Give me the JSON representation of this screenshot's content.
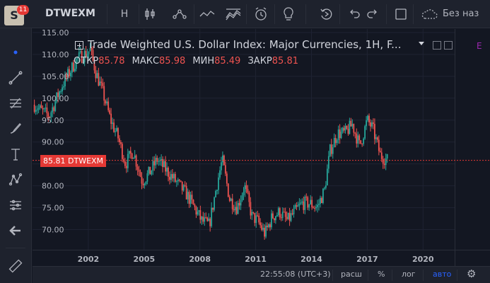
{
  "app": {
    "logo_letter": "S",
    "notification_count": "11",
    "symbol": "DTWEXM",
    "interval": "H",
    "save_label": "Без наз"
  },
  "toolbar_icons": [
    "candles-icon",
    "indicators-icon",
    "compare-line-icon",
    "templates-icon",
    "alert-icon",
    "idea-bulb-icon",
    "replay-icon",
    "undo-icon",
    "redo-icon",
    "fullscreen-icon",
    "cloud-save-icon"
  ],
  "left_tools": [
    "crosshair-dot-icon",
    "trend-line-icon",
    "fib-tool-icon",
    "brush-icon",
    "text-tool-icon",
    "pattern-icon",
    "prediction-icon",
    "back-arrow-icon",
    "ruler-icon"
  ],
  "legend": {
    "title": "Trade Weighted U.S. Dollar Index: Major Currencies, 1H, F...",
    "open_label": "ОТКР",
    "open_value": "85.78",
    "high_label": "МАКС",
    "high_value": "85.98",
    "low_label": "МИН",
    "low_value": "85.49",
    "close_label": "ЗАКР",
    "close_value": "85.81",
    "badge": "E"
  },
  "price_tag": {
    "value": "85.81",
    "symbol": "DTWEXM"
  },
  "bottom": {
    "time": "22:55:08 (UTC+3)",
    "session": "расш",
    "percent": "%",
    "log": "лог",
    "auto": "авто"
  },
  "colors": {
    "up": "#26a69a",
    "down": "#ef5350",
    "price_line": "#e53935",
    "accent": "#2962ff"
  },
  "chart_data": {
    "type": "candlestick",
    "y_ticks": [
      "115.00",
      "110.00",
      "105.00",
      "100.00",
      "95.00",
      "90.00",
      "85.00",
      "80.00",
      "75.00",
      "70.00"
    ],
    "y_tick_values": [
      115,
      110,
      105,
      100,
      95,
      90,
      85,
      80,
      75,
      70
    ],
    "x_ticks": [
      "2002",
      "2005",
      "2008",
      "2011",
      "2014",
      "2017",
      "2020"
    ],
    "x_tick_values": [
      2002,
      2005,
      2008,
      2011,
      2014,
      2017,
      2020
    ],
    "ylim": [
      65.4,
      115.8
    ],
    "xlim": [
      1999.0,
      2021.7
    ],
    "last_price": 85.81,
    "series": [
      {
        "x": 1999.1,
        "y": 98.5
      },
      {
        "x": 1999.5,
        "y": 97.0
      },
      {
        "x": 1999.9,
        "y": 96.0
      },
      {
        "x": 2000.2,
        "y": 99.0
      },
      {
        "x": 2000.6,
        "y": 103.0
      },
      {
        "x": 2001.0,
        "y": 106.0
      },
      {
        "x": 2001.4,
        "y": 109.0
      },
      {
        "x": 2001.8,
        "y": 110.0
      },
      {
        "x": 2002.1,
        "y": 111.0
      },
      {
        "x": 2002.4,
        "y": 106.0
      },
      {
        "x": 2002.8,
        "y": 101.0
      },
      {
        "x": 2003.2,
        "y": 95.0
      },
      {
        "x": 2003.6,
        "y": 91.0
      },
      {
        "x": 2004.0,
        "y": 85.0
      },
      {
        "x": 2004.4,
        "y": 88.0
      },
      {
        "x": 2004.9,
        "y": 81.0
      },
      {
        "x": 2005.3,
        "y": 83.0
      },
      {
        "x": 2005.7,
        "y": 86.0
      },
      {
        "x": 2006.1,
        "y": 84.0
      },
      {
        "x": 2006.5,
        "y": 82.0
      },
      {
        "x": 2006.9,
        "y": 80.0
      },
      {
        "x": 2007.3,
        "y": 78.0
      },
      {
        "x": 2007.7,
        "y": 75.0
      },
      {
        "x": 2008.1,
        "y": 72.0
      },
      {
        "x": 2008.5,
        "y": 71.0
      },
      {
        "x": 2008.9,
        "y": 80.0
      },
      {
        "x": 2009.2,
        "y": 86.0
      },
      {
        "x": 2009.6,
        "y": 77.0
      },
      {
        "x": 2010.0,
        "y": 75.0
      },
      {
        "x": 2010.4,
        "y": 80.0
      },
      {
        "x": 2010.8,
        "y": 73.0
      },
      {
        "x": 2011.1,
        "y": 72.0
      },
      {
        "x": 2011.5,
        "y": 69.0
      },
      {
        "x": 2011.9,
        "y": 73.0
      },
      {
        "x": 2012.3,
        "y": 74.0
      },
      {
        "x": 2012.7,
        "y": 72.0
      },
      {
        "x": 2013.1,
        "y": 74.0
      },
      {
        "x": 2013.5,
        "y": 76.0
      },
      {
        "x": 2013.9,
        "y": 76.0
      },
      {
        "x": 2014.3,
        "y": 75.0
      },
      {
        "x": 2014.7,
        "y": 79.0
      },
      {
        "x": 2015.0,
        "y": 88.0
      },
      {
        "x": 2015.4,
        "y": 92.0
      },
      {
        "x": 2015.8,
        "y": 92.0
      },
      {
        "x": 2016.2,
        "y": 94.0
      },
      {
        "x": 2016.6,
        "y": 89.0
      },
      {
        "x": 2017.0,
        "y": 95.0
      },
      {
        "x": 2017.3,
        "y": 93.0
      },
      {
        "x": 2017.7,
        "y": 87.0
      },
      {
        "x": 2018.1,
        "y": 85.8
      }
    ]
  }
}
